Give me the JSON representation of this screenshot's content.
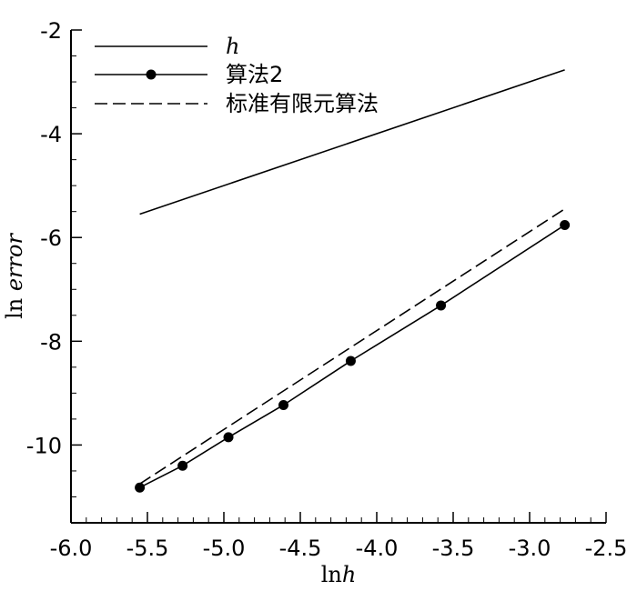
{
  "chart_data": {
    "type": "line",
    "xlabel_prefix": "ln",
    "xlabel_var": "h",
    "ylabel_prefix": "ln ",
    "ylabel_var": "error",
    "xlim": [
      -6.0,
      -2.5
    ],
    "ylim": [
      -11.5,
      -2.0
    ],
    "x_ticks": [
      -6.0,
      -5.5,
      -5.0,
      -4.5,
      -4.0,
      -3.5,
      -3.0,
      -2.5
    ],
    "x_tick_labels": [
      "-6.0",
      "-5.5",
      "-5.0",
      "-4.5",
      "-4.0",
      "-3.5",
      "-3.0",
      "-2.5"
    ],
    "y_ticks": [
      -2,
      -4,
      -6,
      -8,
      -10
    ],
    "y_tick_labels": [
      "-2",
      "-4",
      "-6",
      "-8",
      "-10"
    ],
    "legend_position": "top-left",
    "series": [
      {
        "name": "h",
        "style": "solid",
        "markers": false,
        "x": [
          -5.55,
          -2.77
        ],
        "y": [
          -5.55,
          -2.77
        ]
      },
      {
        "name": "算法2",
        "style": "solid",
        "markers": true,
        "x": [
          -5.55,
          -5.27,
          -4.97,
          -4.61,
          -4.17,
          -3.58,
          -2.77
        ],
        "y": [
          -10.82,
          -10.4,
          -9.85,
          -9.23,
          -8.38,
          -7.31,
          -5.76
        ]
      },
      {
        "name": "标准有限元算法",
        "style": "dashed",
        "markers": false,
        "x": [
          -5.55,
          -2.77
        ],
        "y": [
          -10.75,
          -5.45
        ]
      }
    ]
  }
}
